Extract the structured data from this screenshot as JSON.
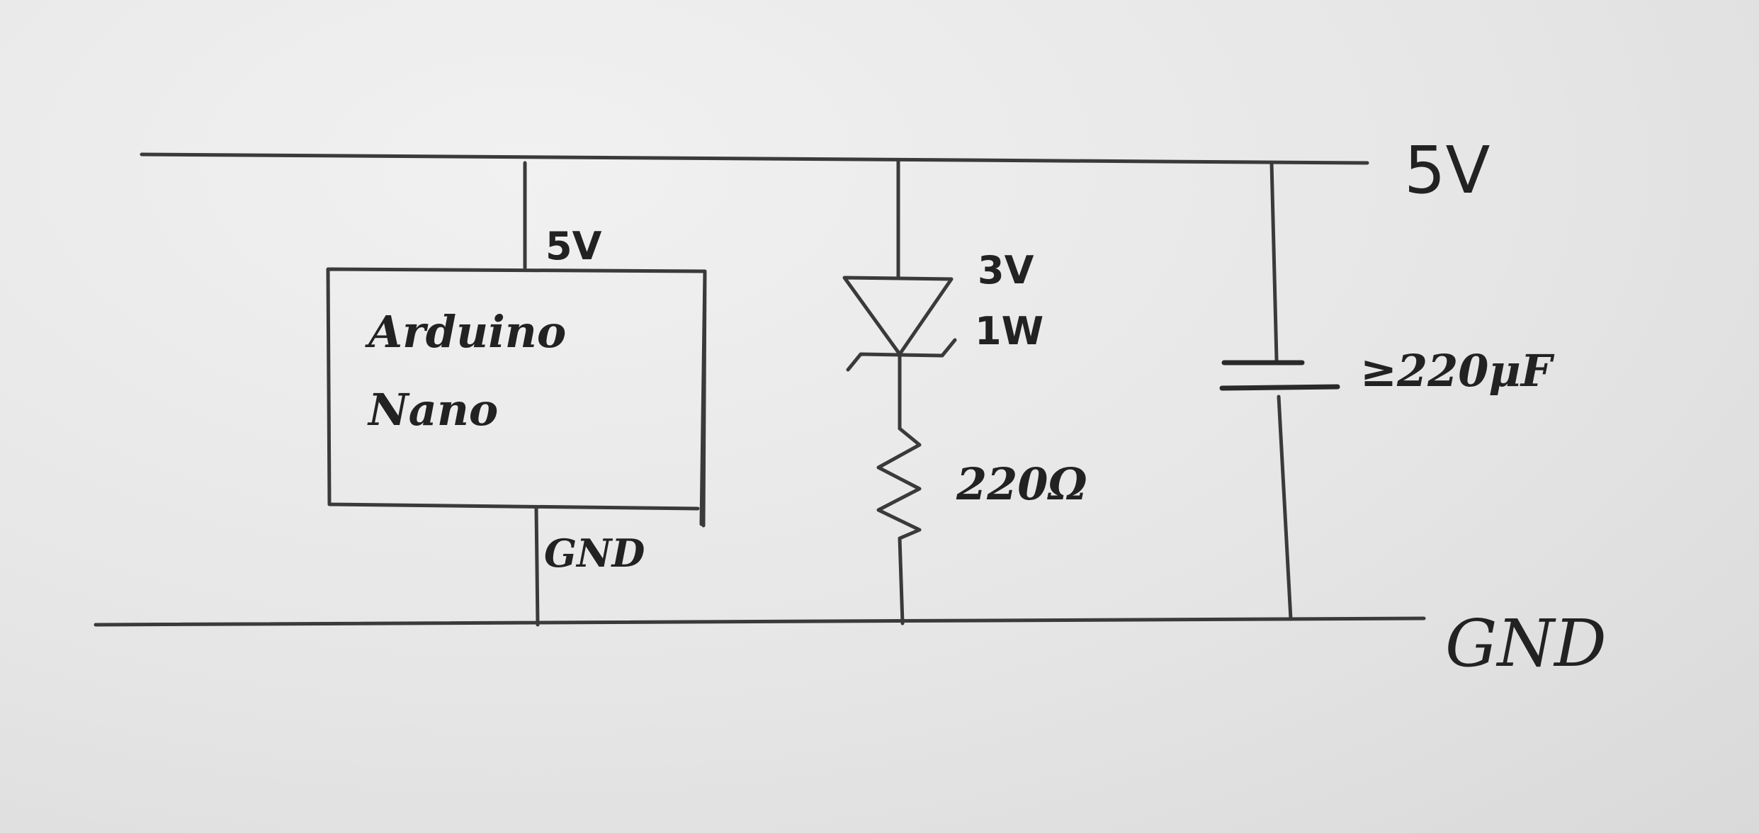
{
  "rails": {
    "top_label": "5V",
    "bottom_label": "GND"
  },
  "arduino": {
    "line1": "Arduino",
    "line2": "Nano",
    "pin_top": "5V",
    "pin_bottom": "GND"
  },
  "zener": {
    "voltage": "3V",
    "power": "1W"
  },
  "resistor": {
    "value": "220Ω"
  },
  "capacitor": {
    "value": "≥220μF"
  }
}
